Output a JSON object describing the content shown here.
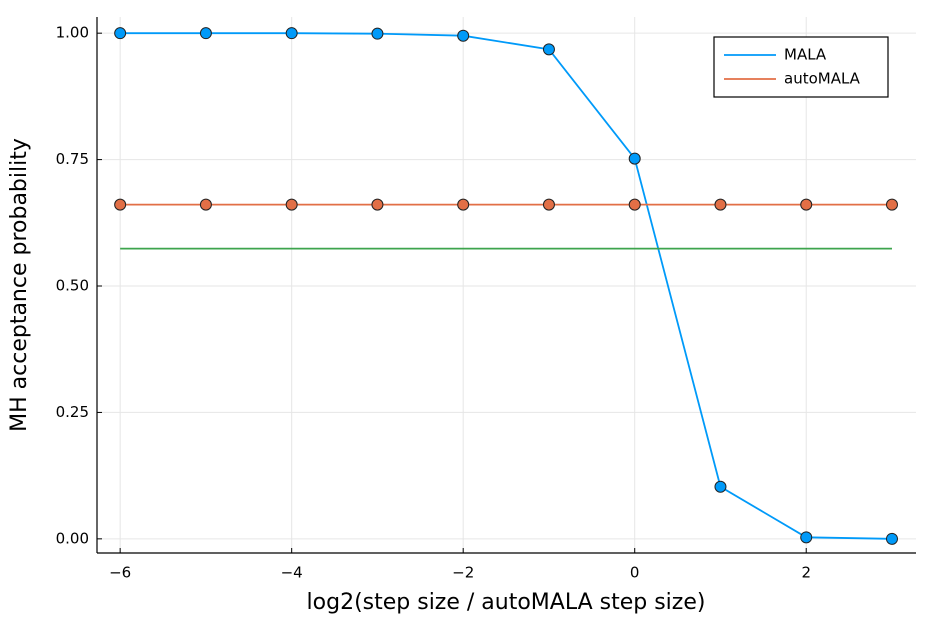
{
  "chart_data": {
    "type": "line",
    "x_label": "log2(step size / autoMALA step size)",
    "y_label": "MH acceptance probability",
    "x": [
      -6,
      -5,
      -4,
      -3,
      -2,
      -1,
      0,
      1,
      2,
      3
    ],
    "series": [
      {
        "name": "MALA",
        "color": "#009af9",
        "markers": true,
        "values": [
          1.0,
          1.0,
          1.0,
          0.999,
          0.995,
          0.968,
          0.752,
          0.103,
          0.003,
          0.0
        ]
      },
      {
        "name": "autoMALA",
        "color": "#e26f46",
        "markers": true,
        "values": [
          0.661,
          0.661,
          0.661,
          0.661,
          0.661,
          0.661,
          0.661,
          0.661,
          0.661,
          0.661
        ]
      },
      {
        "color": "#3da44d",
        "markers": false,
        "values": [
          0.574,
          0.574,
          0.574,
          0.574,
          0.574,
          0.574,
          0.574,
          0.574,
          0.574,
          0.574
        ]
      }
    ],
    "xlim": [
      -6.27,
      3.28
    ],
    "ylim": [
      -0.028,
      1.032
    ],
    "xticks": [
      {
        "value": -6,
        "label": "−6"
      },
      {
        "value": -4,
        "label": "−4"
      },
      {
        "value": -2,
        "label": "−2"
      },
      0,
      2
    ],
    "yticks": [
      {
        "value": 0,
        "label": "0.00"
      },
      {
        "value": 0.25,
        "label": "0.25"
      },
      {
        "value": 0.5,
        "label": "0.50"
      },
      {
        "value": 0.75,
        "label": "0.75"
      },
      {
        "value": 1,
        "label": "1.00"
      }
    ],
    "grid": true,
    "legend": "top-right"
  }
}
